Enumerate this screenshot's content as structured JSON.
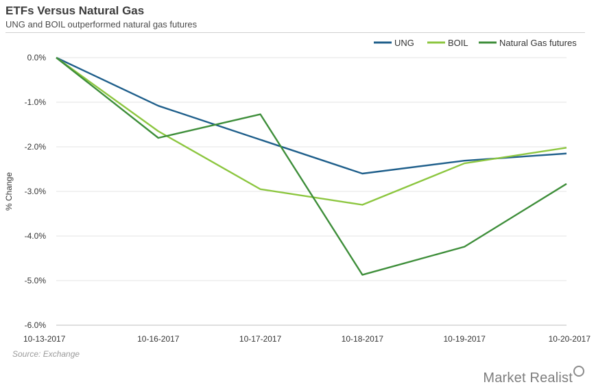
{
  "header": {
    "title": "ETFs Versus Natural Gas",
    "subtitle": "UNG and BOIL outperformed natural gas futures"
  },
  "footer": {
    "source": "Source: Exchange",
    "brand": "Market Realist",
    "brand_icon": "magnifier-icon"
  },
  "chart_data": {
    "type": "line",
    "title": "ETFs Versus Natural Gas",
    "subtitle": "UNG and BOIL outperformed natural gas futures",
    "xlabel": "",
    "ylabel": "% Change",
    "categories": [
      "10-13-2017",
      "10-16-2017",
      "10-17-2017",
      "10-18-2017",
      "10-19-2017",
      "10-20-2017"
    ],
    "ylim": [
      -6.0,
      0.0
    ],
    "yticks": [
      0.0,
      -1.0,
      -2.0,
      -3.0,
      -4.0,
      -5.0,
      -6.0
    ],
    "ytick_labels": [
      "0.0%",
      "-1.0%",
      "-2.0%",
      "-3.0%",
      "-4.0%",
      "-5.0%",
      "-6.0%"
    ],
    "grid": true,
    "legend": "top-right",
    "series": [
      {
        "name": "UNG",
        "color": "#1f5f8b",
        "values": [
          0.0,
          -1.08,
          -1.84,
          -2.6,
          -2.31,
          -2.15
        ]
      },
      {
        "name": "BOIL",
        "color": "#8cc63f",
        "values": [
          0.0,
          -1.65,
          -2.95,
          -3.3,
          -2.37,
          -2.02
        ]
      },
      {
        "name": "Natural Gas futures",
        "color": "#3e8e3a",
        "values": [
          0.0,
          -1.8,
          -1.27,
          -4.87,
          -4.24,
          -2.83
        ]
      }
    ]
  }
}
